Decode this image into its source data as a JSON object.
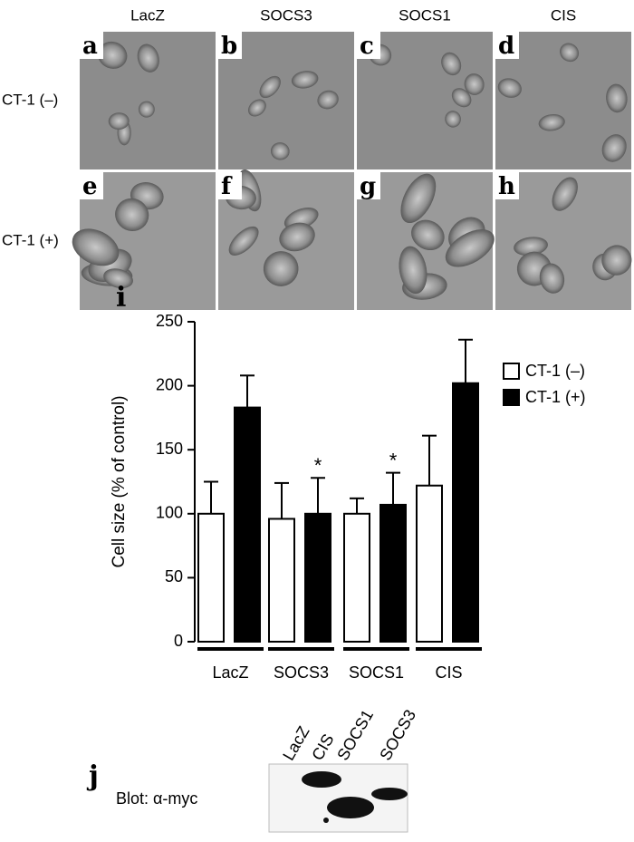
{
  "micrographs": {
    "columns": [
      "LacZ",
      "SOCS3",
      "SOCS1",
      "CIS"
    ],
    "rows": [
      "CT-1 (–)",
      "CT-1 (+)"
    ],
    "letters": [
      [
        "a",
        "b",
        "c",
        "d"
      ],
      [
        "e",
        "f",
        "g",
        "h"
      ]
    ]
  },
  "chart_data": {
    "type": "bar",
    "panel_label": "i",
    "y_label": "Cell size (% of control)",
    "categories": [
      "LacZ",
      "SOCS3",
      "SOCS1",
      "CIS"
    ],
    "series": [
      {
        "name": "CT-1 (–)",
        "color": "#ffffff",
        "values": [
          100,
          96,
          100,
          122
        ],
        "errors": [
          25,
          28,
          12,
          39
        ]
      },
      {
        "name": "CT-1 (+)",
        "color": "#000000",
        "values": [
          183,
          100,
          107,
          202
        ],
        "errors": [
          25,
          28,
          25,
          34
        ],
        "markers": [
          null,
          "*",
          "*",
          null
        ]
      }
    ],
    "ylim": [
      0,
      250
    ],
    "yticks": [
      0,
      50,
      100,
      150,
      200,
      250
    ],
    "grid": false,
    "legend": "top-right"
  },
  "blot": {
    "letter": "j",
    "label": "Blot: α-myc",
    "lanes": [
      "LacZ",
      "CIS",
      "SOCS1",
      "SOCS3"
    ]
  }
}
